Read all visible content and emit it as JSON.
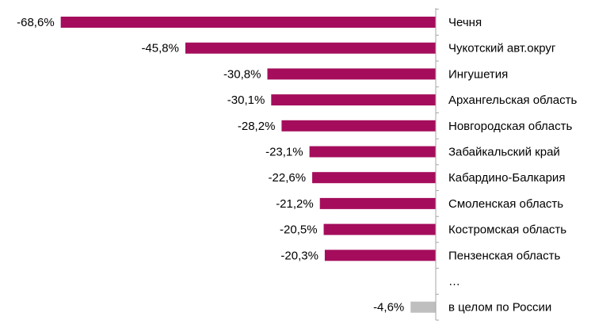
{
  "chart_data": {
    "type": "bar",
    "orientation": "horizontal",
    "title": "",
    "xlabel": "",
    "ylabel": "",
    "xlim": [
      -70,
      0
    ],
    "grid": false,
    "legend": "none",
    "categories": [
      "Чечня",
      "Чукотский авт.округ",
      "Ингушетия",
      "Архангельская область",
      "Новгородская область",
      "Забайкальский край",
      "Кабардино-Балкария",
      "Смоленская область",
      "Костромская область",
      "Пензенская область",
      "…",
      "в целом по России"
    ],
    "values": [
      -68.6,
      -45.8,
      -30.8,
      -30.1,
      -28.2,
      -23.1,
      -22.6,
      -21.2,
      -20.5,
      -20.3,
      null,
      -4.6
    ],
    "value_labels": [
      "-68,6%",
      "-45,8%",
      "-30,8%",
      "-30,1%",
      "-28,2%",
      "-23,1%",
      "-22,6%",
      "-21,2%",
      "-20,5%",
      "-20,3%",
      "",
      "-4,6%"
    ],
    "bar_colors": [
      "#A50D5C",
      "#A50D5C",
      "#A50D5C",
      "#A50D5C",
      "#A50D5C",
      "#A50D5C",
      "#A50D5C",
      "#A50D5C",
      "#A50D5C",
      "#A50D5C",
      "#A50D5C",
      "#BFBFBF"
    ],
    "axis_color": "#A6A6A6"
  }
}
